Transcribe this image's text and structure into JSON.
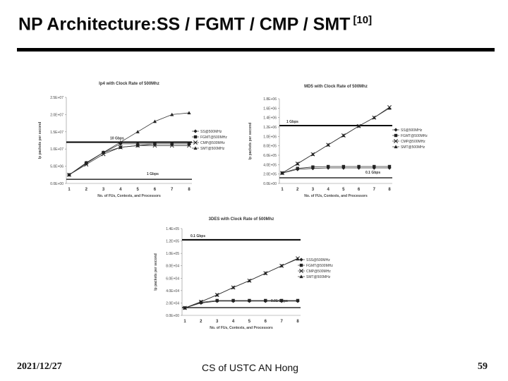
{
  "slide": {
    "title": "NP Architecture:SS / FGMT / CMP / SMT",
    "title_ref": "[10]",
    "footer_date": "2021/12/27",
    "footer_center": "CS of USTC AN Hong",
    "page_number": "59"
  },
  "chart_data": [
    {
      "type": "line",
      "title": "Ip4 with Clock Rate of 500Mhz",
      "xlabel": "No. of FUs, Contexts, and Processors",
      "ylabel": "Ip packets per second",
      "x": [
        1,
        2,
        3,
        4,
        5,
        6,
        7,
        8
      ],
      "ylim": [
        0,
        25000000
      ],
      "yticks": [
        0,
        5000000,
        10000000,
        15000000,
        20000000,
        25000000
      ],
      "ytick_labels": [
        "0.0E+00",
        "5.0E+06",
        "1.0E+07",
        "1.5E+07",
        "2.0E+07",
        "2.5E+07"
      ],
      "series": [
        {
          "name": "SS@500MHz",
          "values": [
            2500000,
            6000000,
            9000000,
            11500000,
            11500000,
            11500000,
            11500000,
            11500000
          ]
        },
        {
          "name": "FGMT@500MHz",
          "values": [
            2500000,
            6000000,
            9000000,
            10500000,
            11000000,
            11500000,
            11500000,
            11500000
          ]
        },
        {
          "name": "CMP@500MHz",
          "values": [
            2500000,
            5500000,
            8500000,
            10500000,
            11000000,
            11000000,
            11000000,
            11000000
          ]
        },
        {
          "name": "SMT@500MHz",
          "values": [
            2500000,
            5800000,
            9000000,
            12000000,
            15000000,
            18000000,
            20000000,
            20500000
          ]
        }
      ],
      "reference_lines": [
        {
          "label": "10 Gbps",
          "value": 12000000
        },
        {
          "label": "1 Gbps",
          "value": 1200000
        }
      ],
      "legend": "right"
    },
    {
      "type": "line",
      "title": "MD5 with Clock Rate of 500Mhz",
      "xlabel": "No. of FUs, Contexts, and Processors",
      "ylabel": "Ip packets per second",
      "x": [
        1,
        2,
        3,
        4,
        5,
        6,
        7,
        8
      ],
      "ylim": [
        0,
        1800000
      ],
      "yticks": [
        0,
        200000,
        400000,
        600000,
        800000,
        1000000,
        1200000,
        1400000,
        1600000,
        1800000
      ],
      "ytick_labels": [
        "0.0E+00",
        "2.0E+05",
        "4.0E+05",
        "6.0E+05",
        "8.0E+05",
        "1.0E+06",
        "1.2E+06",
        "1.4E+06",
        "1.6E+06",
        "1.8E+06"
      ],
      "series": [
        {
          "name": "SS@500MHz",
          "values": [
            220000,
            300000,
            320000,
            330000,
            330000,
            330000,
            330000,
            330000
          ]
        },
        {
          "name": "FGMT@500MHz",
          "values": [
            220000,
            320000,
            350000,
            360000,
            360000,
            360000,
            360000,
            360000
          ]
        },
        {
          "name": "CMP@500MHz",
          "values": [
            220000,
            420000,
            620000,
            820000,
            1020000,
            1220000,
            1400000,
            1620000
          ]
        },
        {
          "name": "SMT@500MHz",
          "values": [
            220000,
            420000,
            620000,
            820000,
            1020000,
            1220000,
            1400000,
            1600000
          ]
        }
      ],
      "reference_lines": [
        {
          "label": "1 Gbps",
          "value": 1230000
        },
        {
          "label": "0.1 Gbps",
          "value": 120000
        }
      ],
      "legend": "right"
    },
    {
      "type": "line",
      "title": "3DES with Clock Rate of 500Mhz",
      "xlabel": "No. of FUs, Contexts, and Processors",
      "ylabel": "Ip packets per second",
      "x": [
        1,
        2,
        3,
        4,
        5,
        6,
        7,
        8
      ],
      "ylim": [
        0,
        140000
      ],
      "yticks": [
        0,
        20000,
        40000,
        60000,
        80000,
        100000,
        120000,
        140000
      ],
      "ytick_labels": [
        "0.0E+00",
        "2.0E+04",
        "4.0E+04",
        "6.0E+04",
        "8.0E+04",
        "1.0E+05",
        "1.2E+05",
        "1.4E+05"
      ],
      "series": [
        {
          "name": "SSS@500MHz",
          "values": [
            12000,
            20000,
            23000,
            23000,
            23000,
            23000,
            23000,
            23000
          ]
        },
        {
          "name": "FGMT@500MHz",
          "values": [
            12000,
            21000,
            24000,
            24000,
            24000,
            24000,
            24000,
            24000
          ]
        },
        {
          "name": "CMP@500MHz",
          "values": [
            12000,
            22000,
            33000,
            45000,
            56000,
            68000,
            80000,
            92000
          ]
        },
        {
          "name": "SMT@500MHz",
          "values": [
            12000,
            22000,
            33000,
            45000,
            56000,
            68000,
            80000,
            91000
          ]
        }
      ],
      "reference_lines": [
        {
          "label": "0.1 Gbps",
          "value": 122000
        },
        {
          "label": "0.01 Gbps",
          "value": 12500
        }
      ],
      "legend": "right"
    }
  ]
}
